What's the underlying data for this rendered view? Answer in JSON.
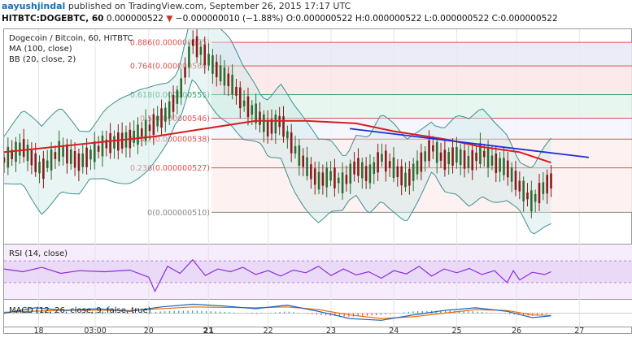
{
  "header": {
    "author": "aayushjindal",
    "published_text": "published on TradingView.com, September 26, 2015 17:17 UTC",
    "symbol_line": "HITBTC:DOGEBTC, 60",
    "last_price": "0.000000522",
    "change_arrow": "▼",
    "change_text": "−0.000000010 (−1.88%)",
    "ohlc": "O:0.000000522 H:0.000000522 L:0.000000522 C:0.000000522"
  },
  "legend": {
    "title": "Dogecoin / Bitcoin, 60, HITBTC",
    "ma": "MA (100, close)",
    "bb": "BB (20, close, 2)",
    "rsi": "RSI (14, close)",
    "macd": "MACD (12, 26, close, 9, false, true)"
  },
  "colors": {
    "candle_down": "#8b1a1a",
    "candle_up": "#2f6b2f",
    "ma": "#d81e1e",
    "trendline": "#1f2ee0",
    "bb_band": "#3f8f8f",
    "rsi": "#8a2be2",
    "macd_line": "#1565c0",
    "signal_line": "#ef6c00",
    "fib_red": "#d9534f",
    "fib_green": "#2e9e63"
  },
  "chart_data": {
    "type": "candlestick",
    "title": "Dogecoin / Bitcoin, 60, HITBTC",
    "x_ticks": [
      "18",
      "03:00",
      "20",
      "21",
      "22",
      "23",
      "24",
      "25",
      "26",
      "27"
    ],
    "fibonacci": [
      {
        "label": "0.886(0.000000575)",
        "ratio": 0.886,
        "price": 5.75e-07
      },
      {
        "label": "0.764(0.000000566)",
        "ratio": 0.764,
        "price": 5.66e-07
      },
      {
        "label": "0.618(0.000000555)",
        "ratio": 0.618,
        "price": 5.55e-07
      },
      {
        "label": "0.5(0.000000546)",
        "ratio": 0.5,
        "price": 5.46e-07
      },
      {
        "label": "0.382(0.000000538)",
        "ratio": 0.382,
        "price": 5.38e-07
      },
      {
        "label": "0.236(0.000000527)",
        "ratio": 0.236,
        "price": 5.27e-07
      },
      {
        "label": "0(0.000000510)",
        "ratio": 0,
        "price": 5.1e-07
      }
    ],
    "price_path": [
      [
        0,
        530
      ],
      [
        0.03,
        535
      ],
      [
        0.06,
        526
      ],
      [
        0.09,
        534
      ],
      [
        0.12,
        529
      ],
      [
        0.16,
        536
      ],
      [
        0.2,
        538
      ],
      [
        0.23,
        542
      ],
      [
        0.26,
        548
      ],
      [
        0.28,
        556
      ],
      [
        0.3,
        575
      ],
      [
        0.32,
        570
      ],
      [
        0.34,
        564
      ],
      [
        0.36,
        560
      ],
      [
        0.38,
        552
      ],
      [
        0.4,
        548
      ],
      [
        0.42,
        542
      ],
      [
        0.44,
        545
      ],
      [
        0.46,
        535
      ],
      [
        0.48,
        528
      ],
      [
        0.5,
        522
      ],
      [
        0.52,
        524
      ],
      [
        0.54,
        521
      ],
      [
        0.56,
        528
      ],
      [
        0.58,
        524
      ],
      [
        0.6,
        531
      ],
      [
        0.62,
        527
      ],
      [
        0.64,
        522
      ],
      [
        0.66,
        528
      ],
      [
        0.68,
        535
      ],
      [
        0.7,
        530
      ],
      [
        0.72,
        532
      ],
      [
        0.74,
        529
      ],
      [
        0.76,
        533
      ],
      [
        0.78,
        529
      ],
      [
        0.8,
        527
      ],
      [
        0.82,
        520
      ],
      [
        0.84,
        514
      ],
      [
        0.86,
        520
      ],
      [
        0.87,
        522
      ]
    ],
    "ma_path": [
      [
        0,
        533
      ],
      [
        0.08,
        535
      ],
      [
        0.16,
        537
      ],
      [
        0.24,
        539
      ],
      [
        0.32,
        542
      ],
      [
        0.4,
        545
      ],
      [
        0.48,
        545
      ],
      [
        0.56,
        544
      ],
      [
        0.62,
        541
      ],
      [
        0.7,
        538
      ],
      [
        0.76,
        535
      ],
      [
        0.82,
        533
      ],
      [
        0.87,
        529
      ]
    ],
    "trendline": {
      "start": [
        0.55,
        542
      ],
      "end": [
        0.93,
        531
      ]
    },
    "rsi_path": [
      [
        0,
        55
      ],
      [
        0.03,
        50
      ],
      [
        0.06,
        58
      ],
      [
        0.09,
        47
      ],
      [
        0.12,
        52
      ],
      [
        0.16,
        50
      ],
      [
        0.2,
        53
      ],
      [
        0.23,
        40
      ],
      [
        0.24,
        14
      ],
      [
        0.26,
        60
      ],
      [
        0.28,
        47
      ],
      [
        0.3,
        72
      ],
      [
        0.32,
        43
      ],
      [
        0.34,
        55
      ],
      [
        0.36,
        50
      ],
      [
        0.38,
        58
      ],
      [
        0.4,
        45
      ],
      [
        0.42,
        52
      ],
      [
        0.44,
        42
      ],
      [
        0.46,
        53
      ],
      [
        0.48,
        48
      ],
      [
        0.5,
        60
      ],
      [
        0.52,
        43
      ],
      [
        0.54,
        55
      ],
      [
        0.56,
        44
      ],
      [
        0.58,
        50
      ],
      [
        0.6,
        38
      ],
      [
        0.62,
        52
      ],
      [
        0.64,
        46
      ],
      [
        0.66,
        60
      ],
      [
        0.68,
        42
      ],
      [
        0.7,
        55
      ],
      [
        0.72,
        48
      ],
      [
        0.74,
        56
      ],
      [
        0.76,
        45
      ],
      [
        0.78,
        52
      ],
      [
        0.8,
        30
      ],
      [
        0.81,
        52
      ],
      [
        0.82,
        35
      ],
      [
        0.84,
        49
      ],
      [
        0.86,
        45
      ],
      [
        0.87,
        50
      ]
    ],
    "macd_path": [
      [
        0,
        0
      ],
      [
        0.05,
        0.6
      ],
      [
        0.1,
        0.3
      ],
      [
        0.15,
        0.5
      ],
      [
        0.2,
        0.2
      ],
      [
        0.25,
        0.7
      ],
      [
        0.3,
        1
      ],
      [
        0.35,
        0.8
      ],
      [
        0.4,
        0.5
      ],
      [
        0.45,
        0.9
      ],
      [
        0.5,
        0.2
      ],
      [
        0.55,
        -0.6
      ],
      [
        0.6,
        -0.8
      ],
      [
        0.65,
        -0.2
      ],
      [
        0.7,
        0.3
      ],
      [
        0.75,
        0.6
      ],
      [
        0.8,
        0.2
      ],
      [
        0.84,
        -0.5
      ],
      [
        0.87,
        -0.3
      ]
    ],
    "signal_path": [
      [
        0,
        0.1
      ],
      [
        0.1,
        0.35
      ],
      [
        0.2,
        0.3
      ],
      [
        0.3,
        0.7
      ],
      [
        0.4,
        0.6
      ],
      [
        0.45,
        0.7
      ],
      [
        0.5,
        0.4
      ],
      [
        0.55,
        -0.2
      ],
      [
        0.6,
        -0.6
      ],
      [
        0.65,
        -0.4
      ],
      [
        0.7,
        0
      ],
      [
        0.75,
        0.4
      ],
      [
        0.8,
        0.3
      ],
      [
        0.84,
        -0.2
      ],
      [
        0.87,
        -0.25
      ]
    ]
  }
}
